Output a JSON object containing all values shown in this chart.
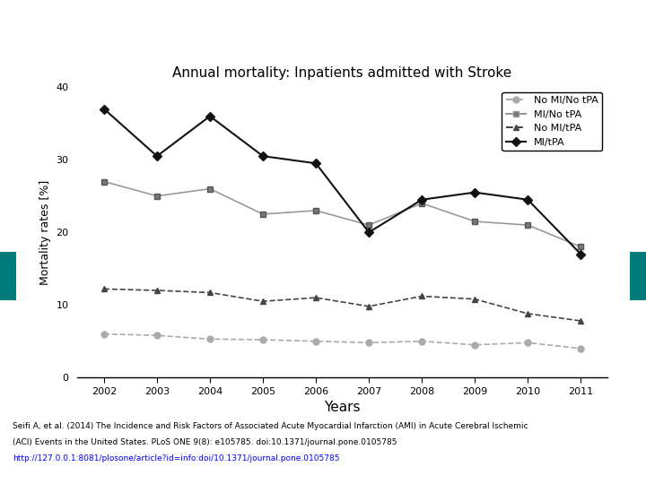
{
  "title": "Annual mortality: Inpatients admitted with Stroke",
  "xlabel": "Years",
  "ylabel": "Mortality rates [%]",
  "years": [
    2002,
    2003,
    2004,
    2005,
    2006,
    2007,
    2008,
    2009,
    2010,
    2011
  ],
  "no_mi_no_tpa": [
    6.0,
    5.8,
    5.3,
    5.2,
    5.0,
    4.8,
    5.0,
    4.5,
    4.8,
    4.0
  ],
  "mi_no_tpa": [
    27.0,
    25.0,
    26.0,
    22.5,
    23.0,
    21.0,
    24.0,
    21.5,
    21.0,
    18.0
  ],
  "no_mi_tpa": [
    12.2,
    12.0,
    11.7,
    10.5,
    11.0,
    9.8,
    11.2,
    10.8,
    8.8,
    7.8
  ],
  "mi_tpa": [
    37.0,
    30.5,
    36.0,
    30.5,
    29.5,
    20.0,
    24.5,
    25.5,
    24.5,
    17.0
  ],
  "ylim": [
    0,
    40
  ],
  "yticks": [
    0,
    10,
    20,
    30,
    40
  ],
  "color_no_mi_no_tpa": "#888888",
  "color_mi_no_tpa": "#555555",
  "color_no_mi_tpa": "#888888",
  "color_mi_tpa": "#111111",
  "bg_color": "#ffffff",
  "legend_labels": [
    "No MI/No tPA",
    "MI/No tPA",
    "No MI/tPA",
    "MI/tPA"
  ],
  "footer_text": "Seifi A, et al. (2014) The Incidence and Risk Factors of Associated Acute Myocardial Infarction (AMI) in Acute Cerebral Ischemic\n(ACI) Events in the United States. PLoS ONE 9(8): e105785. doi:10.1371/journal.pone.0105785\nhttp://127.0.0.1:8081/plosone/article?id=info:doi/10.1371/journal.pone.0105785",
  "teal_color": "#008B8B",
  "header_bg": "#ffffff"
}
